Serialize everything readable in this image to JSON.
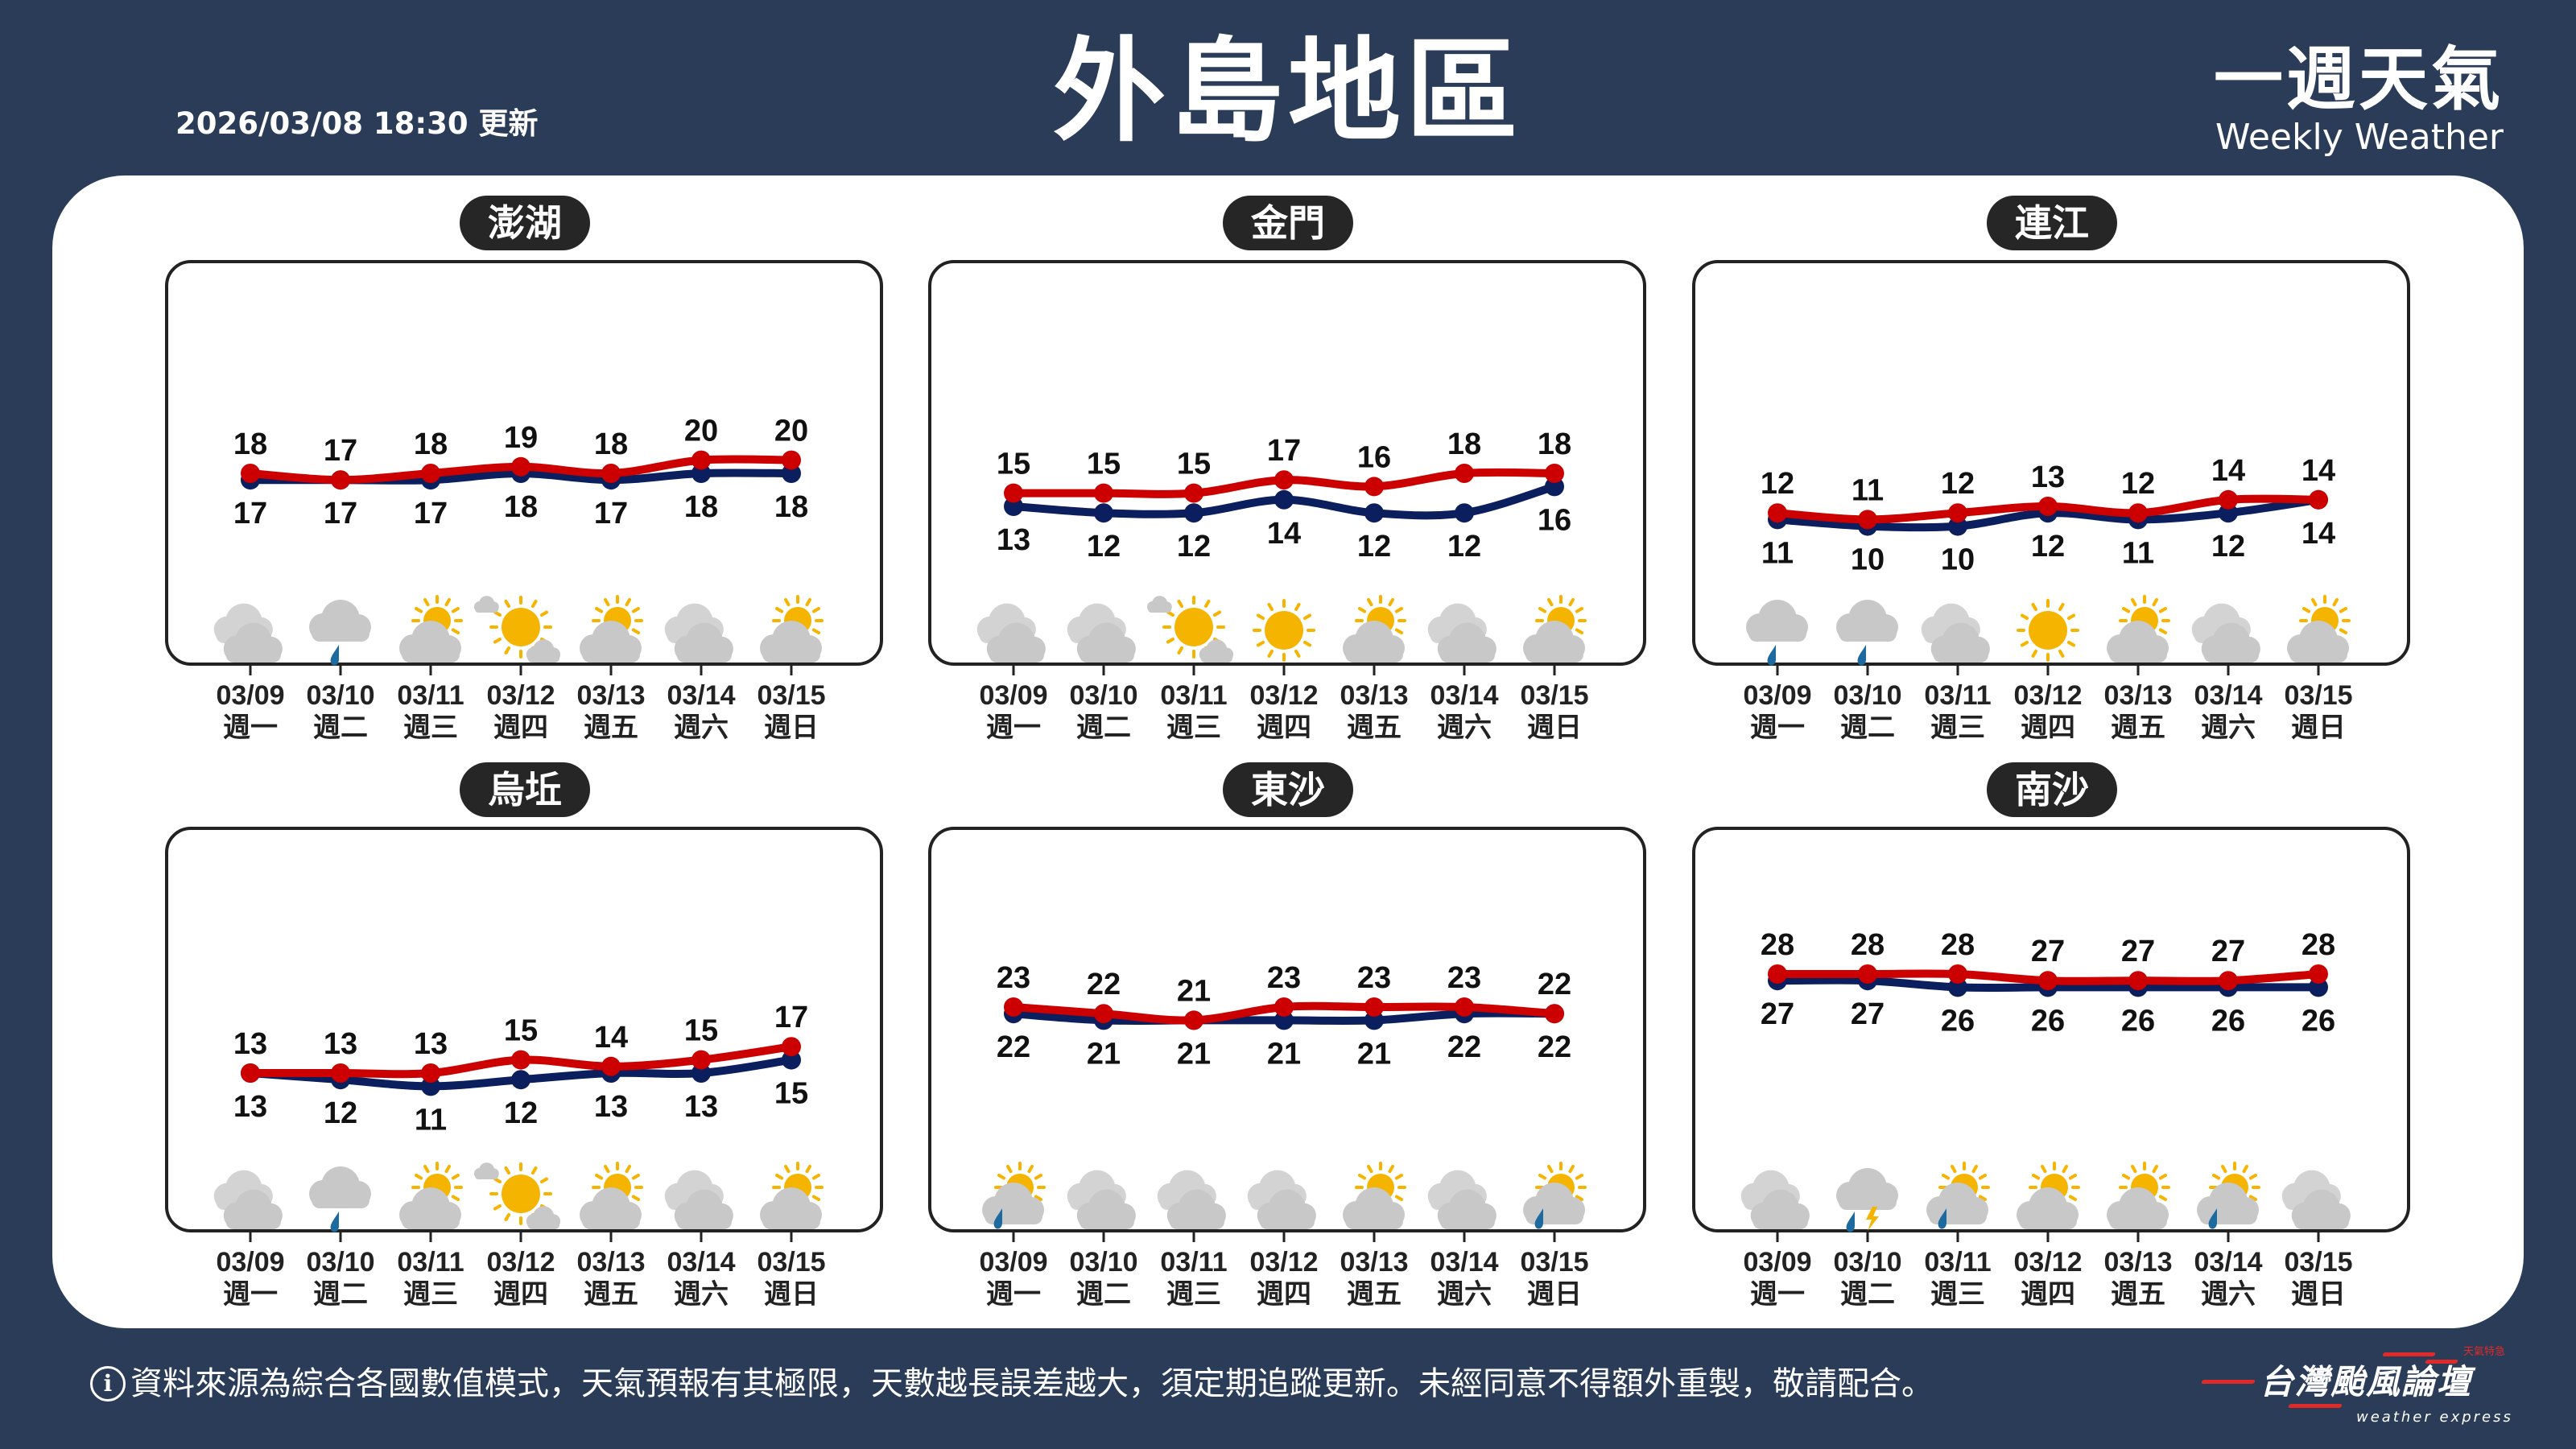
{
  "header": {
    "title": "外島地區",
    "updated": "2026/03/08 18:30 更新",
    "brand_zh": "一週天氣",
    "brand_en": "Weekly Weather"
  },
  "colors": {
    "background": "#2a3c57",
    "high_line": "#cc0000",
    "low_line": "#0b1f5e",
    "cloud": "#c8c8c8",
    "sun": "#f5b400",
    "rain": "#1d6b9e"
  },
  "dates": [
    "03/09",
    "03/10",
    "03/11",
    "03/12",
    "03/13",
    "03/14",
    "03/15"
  ],
  "weekdays": [
    "週一",
    "週二",
    "週三",
    "週四",
    "週五",
    "週六",
    "週日"
  ],
  "regions": [
    {
      "name": "澎湖",
      "highs": [
        18,
        17,
        18,
        19,
        18,
        20,
        20
      ],
      "lows": [
        17,
        17,
        17,
        18,
        17,
        18,
        18
      ],
      "icons": [
        "cloudy",
        "rain",
        "partly-cloudy",
        "mostly-sunny",
        "partly-cloudy",
        "cloudy",
        "partly-cloudy"
      ]
    },
    {
      "name": "金門",
      "highs": [
        15,
        15,
        15,
        17,
        16,
        18,
        18
      ],
      "lows": [
        13,
        12,
        12,
        14,
        12,
        12,
        16
      ],
      "icons": [
        "cloudy",
        "cloudy",
        "mostly-sunny",
        "sunny",
        "partly-cloudy",
        "cloudy",
        "partly-cloudy"
      ]
    },
    {
      "name": "連江",
      "highs": [
        12,
        11,
        12,
        13,
        12,
        14,
        14
      ],
      "lows": [
        11,
        10,
        10,
        12,
        11,
        12,
        14
      ],
      "icons": [
        "rain",
        "rain",
        "cloudy",
        "sunny",
        "partly-cloudy",
        "cloudy",
        "partly-cloudy"
      ]
    },
    {
      "name": "烏坵",
      "highs": [
        13,
        13,
        13,
        15,
        14,
        15,
        17
      ],
      "lows": [
        13,
        12,
        11,
        12,
        13,
        13,
        15
      ],
      "icons": [
        "cloudy",
        "rain",
        "partly-cloudy",
        "mostly-sunny",
        "partly-cloudy",
        "cloudy",
        "partly-cloudy"
      ]
    },
    {
      "name": "東沙",
      "highs": [
        23,
        22,
        21,
        23,
        23,
        23,
        22
      ],
      "lows": [
        22,
        21,
        21,
        21,
        21,
        22,
        22
      ],
      "icons": [
        "partly-cloudy-rain",
        "cloudy",
        "cloudy",
        "cloudy",
        "partly-cloudy",
        "cloudy",
        "partly-cloudy-rain"
      ]
    },
    {
      "name": "南沙",
      "highs": [
        28,
        28,
        28,
        27,
        27,
        27,
        28
      ],
      "lows": [
        27,
        27,
        26,
        26,
        26,
        26,
        26
      ],
      "icons": [
        "cloudy",
        "thunder-rain",
        "partly-cloudy-rain",
        "partly-cloudy",
        "partly-cloudy",
        "partly-cloudy-rain",
        "cloudy"
      ]
    }
  ],
  "footer": {
    "info_icon": "info-circle-icon",
    "disclaimer": "資料來源為綜合各國數值模式，天氣預報有其極限，天數越長誤差越大，須定期追蹤更新。未經同意不得額外重製，敬請配合。"
  },
  "logo": {
    "main": "台灣颱風論壇",
    "sub": "weather express",
    "tag": "天氣特急"
  }
}
